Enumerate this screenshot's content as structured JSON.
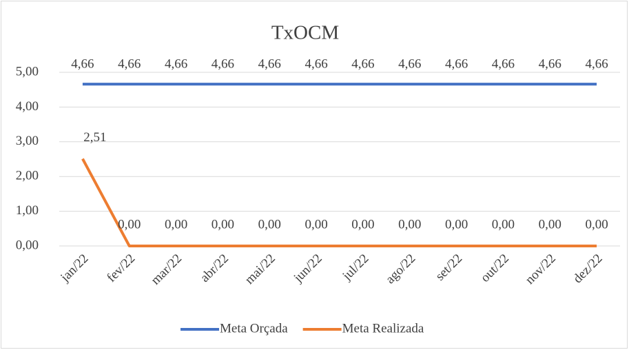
{
  "chart_data": {
    "type": "line",
    "title": "TxOCM",
    "categories": [
      "jan/22",
      "fev/22",
      "mar/22",
      "abr/22",
      "mai/22",
      "jun/22",
      "jul/22",
      "ago/22",
      "set/22",
      "out/22",
      "nov/22",
      "dez/22"
    ],
    "series": [
      {
        "name": "Meta Orçada",
        "color": "#4472c4",
        "values": [
          4.66,
          4.66,
          4.66,
          4.66,
          4.66,
          4.66,
          4.66,
          4.66,
          4.66,
          4.66,
          4.66,
          4.66
        ],
        "value_labels": [
          "4,66",
          "4,66",
          "4,66",
          "4,66",
          "4,66",
          "4,66",
          "4,66",
          "4,66",
          "4,66",
          "4,66",
          "4,66",
          "4,66"
        ]
      },
      {
        "name": "Meta Realizada",
        "color": "#ed7d31",
        "values": [
          2.51,
          0,
          0,
          0,
          0,
          0,
          0,
          0,
          0,
          0,
          0,
          0
        ],
        "value_labels": [
          "2,51",
          "0,00",
          "0,00",
          "0,00",
          "0,00",
          "0,00",
          "0,00",
          "0,00",
          "0,00",
          "0,00",
          "0,00",
          "0,00"
        ]
      }
    ],
    "ylim": [
      0,
      5
    ],
    "yticks": [
      {
        "value": 0,
        "label": "0,00"
      },
      {
        "value": 1,
        "label": "1,00"
      },
      {
        "value": 2,
        "label": "2,00"
      },
      {
        "value": 3,
        "label": "3,00"
      },
      {
        "value": 4,
        "label": "4,00"
      },
      {
        "value": 5,
        "label": "5,00"
      }
    ],
    "grid": true,
    "legend": "bottom"
  }
}
